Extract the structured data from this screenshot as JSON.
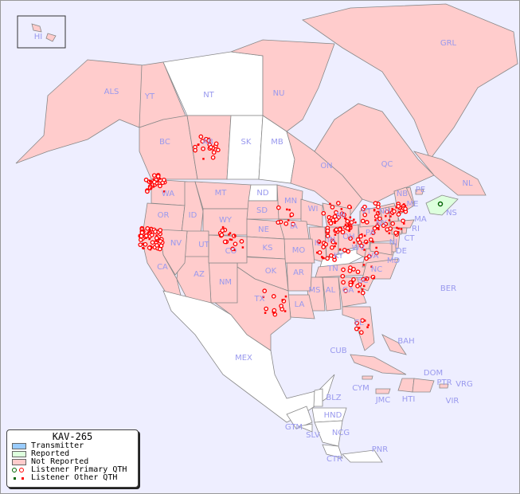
{
  "legend": {
    "title": "KAV-265",
    "items": [
      {
        "label": "Transmitter",
        "color": "#99ccff"
      },
      {
        "label": "Reported",
        "color": "#ddffdd"
      },
      {
        "label": "Not Reported",
        "color": "#ffcccc"
      },
      {
        "label": "Listener Primary QTH",
        "colors": [
          "#006600",
          "#ff0000"
        ]
      },
      {
        "label": "Listener Other QTH",
        "colors": [
          "#006600",
          "#ff0000"
        ]
      }
    ]
  },
  "colors": {
    "sea": "#eeeeff",
    "not_reported": "#ffcccc",
    "reported": "#ddffdd",
    "unlisted": "#ffffff",
    "label": "#9999ee",
    "spot": "#ff0000",
    "reported_spot": "#006600"
  },
  "regions": {
    "not_reported": [
      "HI",
      "ALS",
      "YT",
      "NU",
      "GRL",
      "BC",
      "AB",
      "ON",
      "QC",
      "NL",
      "NB",
      "PE",
      "WA",
      "OR",
      "ID",
      "MT",
      "WY",
      "SD",
      "NE",
      "MN",
      "WI",
      "IA",
      "IL",
      "IN",
      "OH",
      "MI",
      "NY",
      "VT",
      "NH",
      "ME",
      "MA",
      "CT",
      "RI",
      "NJ",
      "PA",
      "DE",
      "MD",
      "VA",
      "WV",
      "TN",
      "NC",
      "SC",
      "GA",
      "AL",
      "MS",
      "LA",
      "AR",
      "MO",
      "KS",
      "OK",
      "TX",
      "NM",
      "AZ",
      "CO",
      "UT",
      "NV",
      "CA",
      "FL",
      "CUB",
      "BAH",
      "DOM",
      "PTR",
      "JMC",
      "HTI",
      "CYM"
    ],
    "reported": [
      "NS"
    ],
    "no_data": [
      "NT",
      "SK",
      "MB",
      "ND",
      "KY",
      "MEX",
      "BLZ",
      "HND",
      "GTM",
      "SLV",
      "NCG",
      "CTR",
      "PNR",
      "BER",
      "VRG",
      "VIR"
    ]
  }
}
